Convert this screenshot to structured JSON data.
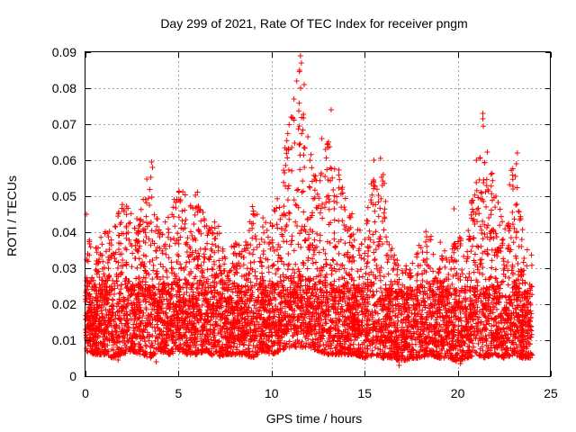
{
  "chart_data": {
    "type": "scatter",
    "title": "Day 299 of 2021, Rate Of TEC Index for receiver pngm",
    "xlabel": "GPS time / hours",
    "ylabel": "ROTI / TECUs",
    "xlim": [
      0,
      25
    ],
    "ylim": [
      0,
      0.09
    ],
    "xticks": [
      "0",
      "5",
      "10",
      "15",
      "20",
      "25"
    ],
    "yticks": [
      "0",
      "0.01",
      "0.02",
      "0.03",
      "0.04",
      "0.05",
      "0.06",
      "0.07",
      "0.08",
      "0.09"
    ],
    "grid": true,
    "marker": "+",
    "color": "#ff0000",
    "series": [
      {
        "name": "ROTI",
        "envelope_hours": [
          0,
          0.5,
          1,
          1.5,
          2,
          2.5,
          3,
          3.5,
          4,
          4.5,
          5,
          5.5,
          6,
          6.5,
          7,
          7.5,
          8,
          8.5,
          9,
          9.5,
          10,
          10.5,
          11,
          11.5,
          12,
          12.5,
          13,
          13.5,
          14,
          14.5,
          15,
          15.5,
          16,
          16.5,
          17,
          17.5,
          18,
          18.5,
          19,
          19.5,
          20,
          20.5,
          21,
          21.5,
          22,
          22.5,
          23,
          23.5,
          24
        ],
        "envelope_upper_roti": [
          0.045,
          0.036,
          0.04,
          0.042,
          0.052,
          0.046,
          0.048,
          0.06,
          0.04,
          0.045,
          0.054,
          0.05,
          0.052,
          0.042,
          0.044,
          0.036,
          0.038,
          0.035,
          0.051,
          0.044,
          0.045,
          0.055,
          0.075,
          0.089,
          0.065,
          0.052,
          0.066,
          0.06,
          0.051,
          0.042,
          0.04,
          0.06,
          0.056,
          0.035,
          0.032,
          0.03,
          0.04,
          0.041,
          0.038,
          0.033,
          0.04,
          0.038,
          0.06,
          0.073,
          0.05,
          0.048,
          0.062,
          0.04,
          0.034
        ],
        "envelope_lower_roti": [
          0.007,
          0.006,
          0.006,
          0.005,
          0.006,
          0.007,
          0.006,
          0.005,
          0.007,
          0.006,
          0.007,
          0.006,
          0.006,
          0.007,
          0.005,
          0.006,
          0.006,
          0.006,
          0.005,
          0.007,
          0.006,
          0.007,
          0.008,
          0.008,
          0.008,
          0.007,
          0.006,
          0.006,
          0.006,
          0.006,
          0.005,
          0.006,
          0.005,
          0.005,
          0.004,
          0.005,
          0.005,
          0.006,
          0.005,
          0.005,
          0.004,
          0.005,
          0.006,
          0.005,
          0.006,
          0.005,
          0.006,
          0.005,
          0.005
        ]
      }
    ],
    "outliers": [
      {
        "x": 0.05,
        "y": 0.045
      },
      {
        "x": 3.55,
        "y": 0.0595
      },
      {
        "x": 3.6,
        "y": 0.058
      },
      {
        "x": 11.05,
        "y": 0.072
      },
      {
        "x": 11.2,
        "y": 0.077
      },
      {
        "x": 11.35,
        "y": 0.082
      },
      {
        "x": 11.55,
        "y": 0.089
      },
      {
        "x": 11.6,
        "y": 0.087
      },
      {
        "x": 11.75,
        "y": 0.081
      },
      {
        "x": 11.5,
        "y": 0.085
      },
      {
        "x": 12.7,
        "y": 0.066
      },
      {
        "x": 12.9,
        "y": 0.063
      },
      {
        "x": 13.2,
        "y": 0.074
      },
      {
        "x": 15.5,
        "y": 0.06
      },
      {
        "x": 15.85,
        "y": 0.0605
      },
      {
        "x": 16.0,
        "y": 0.056
      },
      {
        "x": 15.95,
        "y": 0.053
      },
      {
        "x": 19.8,
        "y": 0.0465
      },
      {
        "x": 21.0,
        "y": 0.06
      },
      {
        "x": 21.35,
        "y": 0.073
      },
      {
        "x": 21.35,
        "y": 0.0715
      },
      {
        "x": 22.05,
        "y": 0.05
      },
      {
        "x": 23.2,
        "y": 0.062
      },
      {
        "x": 23.15,
        "y": 0.059
      },
      {
        "x": 23.1,
        "y": 0.0555
      },
      {
        "x": 1.75,
        "y": 0.0045
      },
      {
        "x": 3.8,
        "y": 0.004
      },
      {
        "x": 16.85,
        "y": 0.003
      },
      {
        "x": 20.15,
        "y": 0.0035
      }
    ]
  }
}
